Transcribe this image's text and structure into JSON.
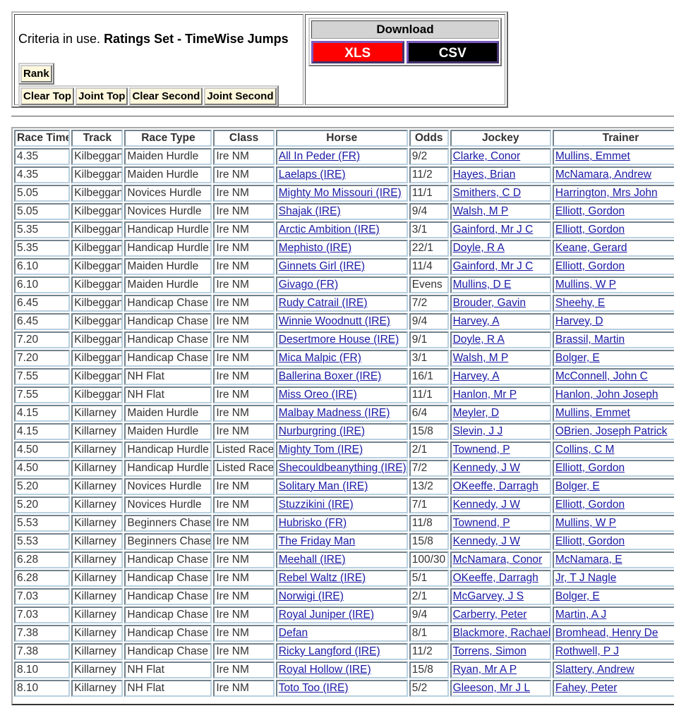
{
  "criteria": {
    "prefix": "Criteria in use.",
    "value": "Ratings Set - TimeWise Jumps"
  },
  "filters": {
    "rank": "Rank",
    "options": [
      "Clear Top",
      "Joint Top",
      "Clear Second",
      "Joint Second"
    ]
  },
  "download": {
    "title": "Download",
    "xls": "XLS",
    "csv": "CSV",
    "xls_color": "#ff0000",
    "csv_color": "#000000"
  },
  "table": {
    "headers": [
      "Race Time",
      "Track",
      "Race Type",
      "Class",
      "Horse",
      "Odds",
      "Jockey",
      "Trainer"
    ],
    "rows": [
      [
        "4.35",
        "Kilbeggan",
        "Maiden Hurdle",
        "Ire NM",
        "All In Peder (FR)",
        "9/2",
        "Clarke, Conor",
        "Mullins, Emmet"
      ],
      [
        "4.35",
        "Kilbeggan",
        "Maiden Hurdle",
        "Ire NM",
        "Laelaps (IRE)",
        "11/2",
        "Hayes, Brian",
        "McNamara, Andrew"
      ],
      [
        "5.05",
        "Kilbeggan",
        "Novices Hurdle",
        "Ire NM",
        "Mighty Mo Missouri (IRE)",
        "11/1",
        "Smithers, C D",
        "Harrington, Mrs John"
      ],
      [
        "5.05",
        "Kilbeggan",
        "Novices Hurdle",
        "Ire NM",
        "Shajak (IRE)",
        "9/4",
        "Walsh, M P",
        "Elliott, Gordon"
      ],
      [
        "5.35",
        "Kilbeggan",
        "Handicap Hurdle",
        "Ire NM",
        "Arctic Ambition (IRE)",
        "3/1",
        "Gainford, Mr J C",
        "Elliott, Gordon"
      ],
      [
        "5.35",
        "Kilbeggan",
        "Handicap Hurdle",
        "Ire NM",
        "Mephisto (IRE)",
        "22/1",
        "Doyle, R A",
        "Keane, Gerard"
      ],
      [
        "6.10",
        "Kilbeggan",
        "Maiden Hurdle",
        "Ire NM",
        "Ginnets Girl (IRE)",
        "11/4",
        "Gainford, Mr J C",
        "Elliott, Gordon"
      ],
      [
        "6.10",
        "Kilbeggan",
        "Maiden Hurdle",
        "Ire NM",
        "Givago (FR)",
        "Evens",
        "Mullins, D E",
        "Mullins, W P"
      ],
      [
        "6.45",
        "Kilbeggan",
        "Handicap Chase",
        "Ire NM",
        "Rudy Catrail (IRE)",
        "7/2",
        "Brouder, Gavin",
        "Sheehy, E"
      ],
      [
        "6.45",
        "Kilbeggan",
        "Handicap Chase",
        "Ire NM",
        "Winnie Woodnutt (IRE)",
        "9/4",
        "Harvey, A",
        "Harvey, D"
      ],
      [
        "7.20",
        "Kilbeggan",
        "Handicap Chase",
        "Ire NM",
        "Desertmore House (IRE)",
        "9/1",
        "Doyle, R A",
        "Brassil, Martin"
      ],
      [
        "7.20",
        "Kilbeggan",
        "Handicap Chase",
        "Ire NM",
        "Mica Malpic (FR)",
        "3/1",
        "Walsh, M P",
        "Bolger, E"
      ],
      [
        "7.55",
        "Kilbeggan",
        "NH Flat",
        "Ire NM",
        "Ballerina Boxer (IRE)",
        "16/1",
        "Harvey, A",
        "McConnell, John C"
      ],
      [
        "7.55",
        "Kilbeggan",
        "NH Flat",
        "Ire NM",
        "Miss Oreo (IRE)",
        "11/1",
        "Hanlon, Mr P",
        "Hanlon, John Joseph"
      ],
      [
        "4.15",
        "Killarney",
        "Maiden Hurdle",
        "Ire NM",
        "Malbay Madness (IRE)",
        "6/4",
        "Meyler, D",
        "Mullins, Emmet"
      ],
      [
        "4.15",
        "Killarney",
        "Maiden Hurdle",
        "Ire NM",
        "Nurburgring (IRE)",
        "15/8",
        "Slevin, J J",
        "OBrien, Joseph Patrick"
      ],
      [
        "4.50",
        "Killarney",
        "Handicap Hurdle",
        "Listed Race",
        "Mighty Tom (IRE)",
        "2/1",
        "Townend, P",
        "Collins, C M"
      ],
      [
        "4.50",
        "Killarney",
        "Handicap Hurdle",
        "Listed Race",
        "Shecouldbeanything (IRE)",
        "7/2",
        "Kennedy, J W",
        "Elliott, Gordon"
      ],
      [
        "5.20",
        "Killarney",
        "Novices Hurdle",
        "Ire NM",
        "Solitary Man (IRE)",
        "13/2",
        "OKeeffe, Darragh",
        "Bolger, E"
      ],
      [
        "5.20",
        "Killarney",
        "Novices Hurdle",
        "Ire NM",
        "Stuzzikini (IRE)",
        "7/1",
        "Kennedy, J W",
        "Elliott, Gordon"
      ],
      [
        "5.53",
        "Killarney",
        "Beginners Chase",
        "Ire NM",
        "Hubrisko (FR)",
        "11/8",
        "Townend, P",
        "Mullins, W P"
      ],
      [
        "5.53",
        "Killarney",
        "Beginners Chase",
        "Ire NM",
        "The Friday Man",
        "15/8",
        "Kennedy, J W",
        "Elliott, Gordon"
      ],
      [
        "6.28",
        "Killarney",
        "Handicap Chase",
        "Ire NM",
        "Meehall (IRE)",
        "100/30",
        "McNamara, Conor",
        "McNamara, E"
      ],
      [
        "6.28",
        "Killarney",
        "Handicap Chase",
        "Ire NM",
        "Rebel Waltz (IRE)",
        "5/1",
        "OKeeffe, Darragh",
        "Jr, T J Nagle"
      ],
      [
        "7.03",
        "Killarney",
        "Handicap Chase",
        "Ire NM",
        "Norwigi (IRE)",
        "2/1",
        "McGarvey, J S",
        "Bolger, E"
      ],
      [
        "7.03",
        "Killarney",
        "Handicap Chase",
        "Ire NM",
        "Royal Juniper (IRE)",
        "9/4",
        "Carberry, Peter",
        "Martin, A J"
      ],
      [
        "7.38",
        "Killarney",
        "Handicap Chase",
        "Ire NM",
        "Defan",
        "8/1",
        "Blackmore, Rachael",
        "Bromhead, Henry De"
      ],
      [
        "7.38",
        "Killarney",
        "Handicap Chase",
        "Ire NM",
        "Ricky Langford (IRE)",
        "11/2",
        "Torrens, Simon",
        "Rothwell, P J"
      ],
      [
        "8.10",
        "Killarney",
        "NH Flat",
        "Ire NM",
        "Royal Hollow (IRE)",
        "15/8",
        "Ryan, Mr A P",
        "Slattery, Andrew"
      ],
      [
        "8.10",
        "Killarney",
        "NH Flat",
        "Ire NM",
        "Toto Too (IRE)",
        "5/2",
        "Gleeson, Mr J L",
        "Fahey, Peter"
      ]
    ]
  }
}
